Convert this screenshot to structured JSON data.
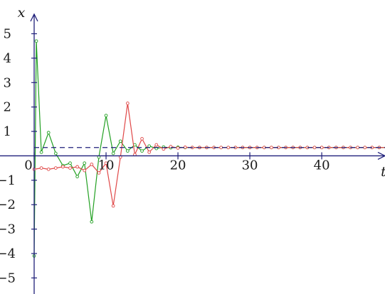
{
  "chart_data": {
    "type": "line",
    "xlabel": "t",
    "ylabel": "x",
    "x_ticks": [
      0,
      10,
      20,
      30,
      40
    ],
    "y_ticks": [
      -5,
      -4,
      -3,
      -2,
      -1,
      1,
      2,
      3,
      4,
      5
    ],
    "xlim": [
      0,
      48.8
    ],
    "ylim": [
      -5.6,
      5.8
    ],
    "reference_line": 0.34,
    "grid": false,
    "legend": "none",
    "colors": {
      "axis": "#1f1f7a",
      "reference": "#1f1f7a",
      "series_green": "#22a022",
      "series_red": "#e04848",
      "text": "#1a1a1a"
    },
    "series": [
      {
        "color": "#22a022",
        "x": [
          0,
          0.3,
          1,
          2,
          3,
          4,
          5,
          6,
          7,
          8,
          9,
          10,
          11,
          12,
          13,
          14,
          15,
          16,
          17,
          18,
          19,
          20,
          21,
          22,
          23,
          24,
          25,
          26,
          27,
          28,
          29,
          30,
          31,
          32,
          33,
          34,
          35,
          36,
          37,
          38,
          39,
          40,
          41,
          42,
          43,
          44,
          45,
          46,
          47,
          48,
          49
        ],
        "y": [
          -4.1,
          4.7,
          0.15,
          0.95,
          0.1,
          -0.4,
          -0.3,
          -0.85,
          -0.3,
          -2.7,
          -0.05,
          1.65,
          0.1,
          0.6,
          0.2,
          0.45,
          0.2,
          0.4,
          0.3,
          0.36,
          0.33,
          0.35,
          0.34,
          0.34,
          0.34,
          0.34,
          0.34,
          0.34,
          0.34,
          0.34,
          0.34,
          0.34,
          0.34,
          0.34,
          0.34,
          0.34,
          0.34,
          0.34,
          0.34,
          0.34,
          0.34,
          0.34,
          0.34,
          0.34,
          0.34,
          0.34,
          0.34,
          0.34,
          0.34,
          0.34,
          0.34
        ]
      },
      {
        "color": "#e04848",
        "x": [
          0,
          1,
          2,
          3,
          4,
          5,
          6,
          7,
          8,
          9,
          10,
          11,
          12,
          13,
          14,
          15,
          16,
          17,
          18,
          19,
          20,
          21,
          22,
          23,
          24,
          25,
          26,
          27,
          28,
          29,
          30,
          31,
          32,
          33,
          34,
          35,
          36,
          37,
          38,
          39,
          40,
          41,
          42,
          43,
          44,
          45,
          46,
          47,
          48,
          49
        ],
        "y": [
          -0.55,
          -0.5,
          -0.55,
          -0.5,
          -0.45,
          -0.5,
          -0.45,
          -0.6,
          -0.35,
          -0.7,
          -0.3,
          -2.05,
          -0.05,
          2.15,
          0.05,
          0.7,
          0.15,
          0.45,
          0.28,
          0.38,
          0.32,
          0.35,
          0.34,
          0.34,
          0.34,
          0.34,
          0.34,
          0.34,
          0.34,
          0.34,
          0.34,
          0.34,
          0.34,
          0.34,
          0.34,
          0.34,
          0.34,
          0.34,
          0.34,
          0.34,
          0.34,
          0.34,
          0.34,
          0.34,
          0.34,
          0.34,
          0.34,
          0.34,
          0.34,
          0.34
        ]
      }
    ]
  }
}
